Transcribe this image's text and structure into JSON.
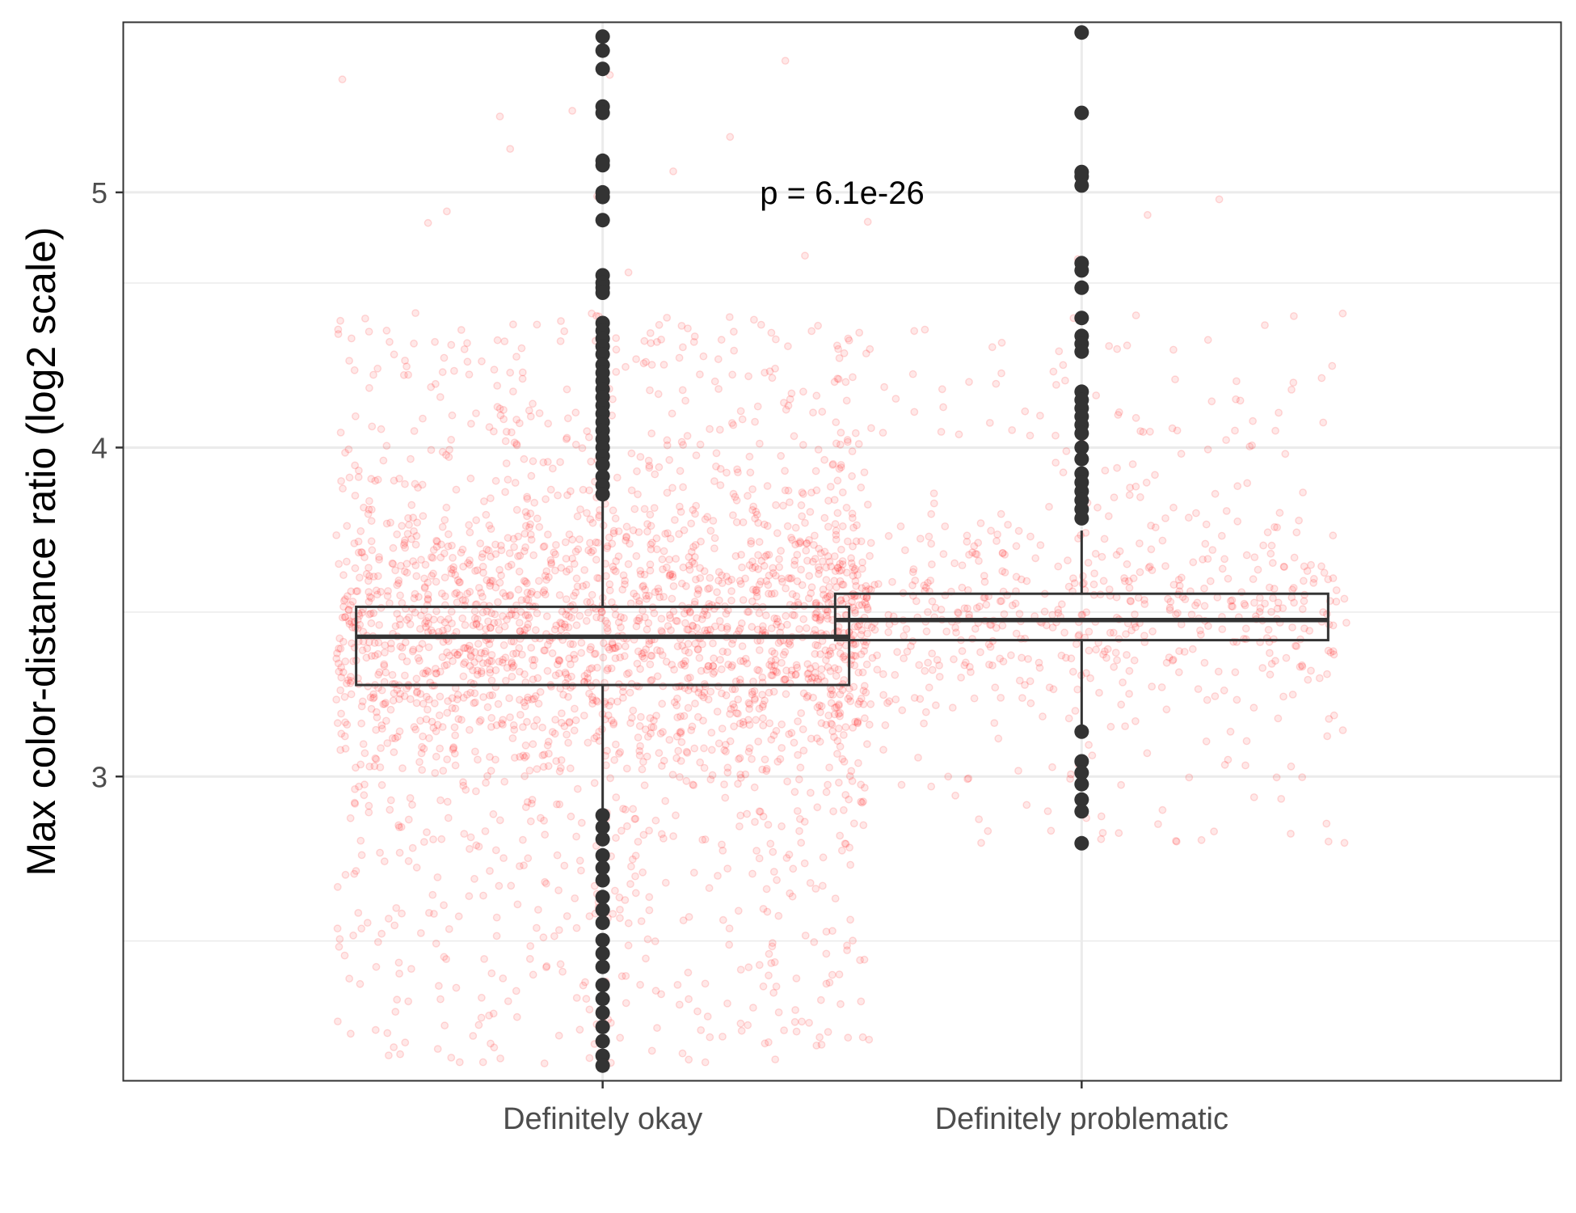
{
  "chart_data": {
    "type": "boxplot",
    "title": "",
    "xlabel": "",
    "ylabel": "Max color-distance ratio (log2 scale)",
    "y_scale": "log2",
    "ylim": [
      2.3,
      5.8
    ],
    "y_ticks": [
      3,
      4,
      5
    ],
    "y_tick_labels": [
      "3",
      "4",
      "5"
    ],
    "grid": true,
    "categories": [
      "Definitely okay",
      "Definitely problematic"
    ],
    "annotation": {
      "text": "p = 6.1e-26",
      "y": 5.0
    },
    "colors": {
      "jitter": "#ff0000",
      "box": "#333333",
      "grid": "#ebebeb",
      "panel_border": "#333333"
    },
    "boxes": [
      {
        "category": "Definitely okay",
        "q1": 3.25,
        "median": 3.39,
        "q3": 3.48,
        "whisker_low": 2.91,
        "whisker_high": 3.83,
        "outliers": [
          5.73,
          5.66,
          5.57,
          5.39,
          5.36,
          5.14,
          5.12,
          5.0,
          4.98,
          4.88,
          4.65,
          4.62,
          4.6,
          4.58,
          4.46,
          4.43,
          4.4,
          4.37,
          4.34,
          4.3,
          4.27,
          4.24,
          4.21,
          4.18,
          4.15,
          4.12,
          4.09,
          4.06,
          4.03,
          4.0,
          3.97,
          3.94,
          3.9,
          3.87,
          3.84,
          2.9,
          2.87,
          2.84,
          2.8,
          2.77,
          2.74,
          2.7,
          2.67,
          2.64,
          2.6,
          2.57,
          2.54,
          2.5,
          2.47,
          2.44,
          2.41,
          2.38,
          2.35,
          2.33
        ],
        "jitter": {
          "n": 2400,
          "min": 2.33,
          "max": 5.73
        }
      },
      {
        "category": "Definitely problematic",
        "q1": 3.38,
        "median": 3.44,
        "q3": 3.52,
        "whisker_low": 3.12,
        "whisker_high": 3.72,
        "outliers": [
          5.75,
          5.36,
          5.09,
          5.07,
          5.03,
          4.7,
          4.67,
          4.6,
          4.48,
          4.41,
          4.38,
          4.35,
          4.2,
          4.17,
          4.14,
          4.11,
          4.08,
          4.05,
          4.0,
          3.96,
          3.91,
          3.88,
          3.85,
          3.82,
          3.79,
          3.76,
          3.12,
          3.04,
          3.01,
          2.98,
          2.94,
          2.91,
          2.83
        ],
        "jitter": {
          "n": 700,
          "min": 2.83,
          "max": 5.75
        }
      }
    ]
  }
}
